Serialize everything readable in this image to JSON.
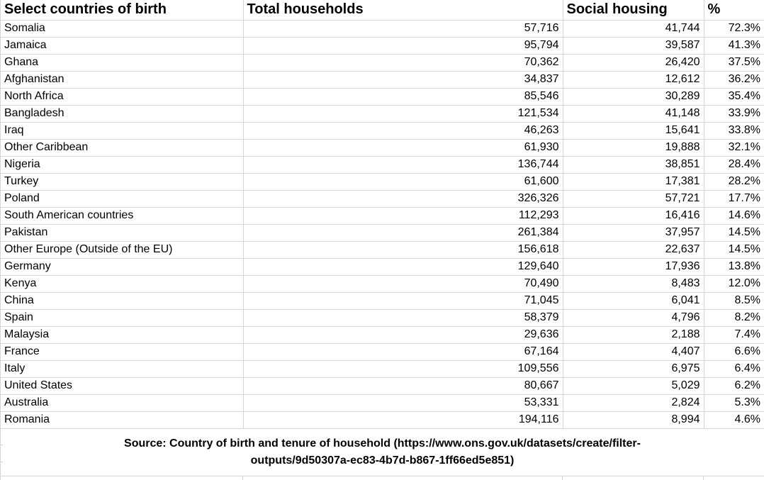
{
  "colors": {
    "gridline": "#d6d6d6",
    "text": "#000000",
    "background": "#ffffff"
  },
  "table": {
    "columns": [
      {
        "label": "Select countries of birth"
      },
      {
        "label": "Total households"
      },
      {
        "label": "Social housing"
      },
      {
        "label": "%"
      }
    ],
    "rows": [
      {
        "country": "Somalia",
        "total_households": "57,716",
        "social_housing": "41,744",
        "percent": "72.3%"
      },
      {
        "country": "Jamaica",
        "total_households": "95,794",
        "social_housing": "39,587",
        "percent": "41.3%"
      },
      {
        "country": "Ghana",
        "total_households": "70,362",
        "social_housing": "26,420",
        "percent": "37.5%"
      },
      {
        "country": "Afghanistan",
        "total_households": "34,837",
        "social_housing": "12,612",
        "percent": "36.2%"
      },
      {
        "country": "North Africa",
        "total_households": "85,546",
        "social_housing": "30,289",
        "percent": "35.4%"
      },
      {
        "country": "Bangladesh",
        "total_households": "121,534",
        "social_housing": "41,148",
        "percent": "33.9%"
      },
      {
        "country": "Iraq",
        "total_households": "46,263",
        "social_housing": "15,641",
        "percent": "33.8%"
      },
      {
        "country": "Other Caribbean",
        "total_households": "61,930",
        "social_housing": "19,888",
        "percent": "32.1%"
      },
      {
        "country": "Nigeria",
        "total_households": "136,744",
        "social_housing": "38,851",
        "percent": "28.4%"
      },
      {
        "country": "Turkey",
        "total_households": "61,600",
        "social_housing": "17,381",
        "percent": "28.2%"
      },
      {
        "country": "Poland",
        "total_households": "326,326",
        "social_housing": "57,721",
        "percent": "17.7%"
      },
      {
        "country": "South American countries",
        "total_households": "112,293",
        "social_housing": "16,416",
        "percent": "14.6%"
      },
      {
        "country": "Pakistan",
        "total_households": "261,384",
        "social_housing": "37,957",
        "percent": "14.5%"
      },
      {
        "country": "Other Europe (Outside of the EU)",
        "total_households": "156,618",
        "social_housing": "22,637",
        "percent": "14.5%"
      },
      {
        "country": "Germany",
        "total_households": "129,640",
        "social_housing": "17,936",
        "percent": "13.8%"
      },
      {
        "country": "Kenya",
        "total_households": "70,490",
        "social_housing": "8,483",
        "percent": "12.0%"
      },
      {
        "country": "China",
        "total_households": "71,045",
        "social_housing": "6,041",
        "percent": "8.5%"
      },
      {
        "country": "Spain",
        "total_households": "58,379",
        "social_housing": "4,796",
        "percent": "8.2%"
      },
      {
        "country": "Malaysia",
        "total_households": "29,636",
        "social_housing": "2,188",
        "percent": "7.4%"
      },
      {
        "country": "France",
        "total_households": "67,164",
        "social_housing": "4,407",
        "percent": "6.6%"
      },
      {
        "country": "Italy",
        "total_households": "109,556",
        "social_housing": "6,975",
        "percent": "6.4%"
      },
      {
        "country": "United States",
        "total_households": "80,667",
        "social_housing": "5,029",
        "percent": "6.2%"
      },
      {
        "country": "Australia",
        "total_households": "53,331",
        "social_housing": "2,824",
        "percent": "5.3%"
      },
      {
        "country": "Romania",
        "total_households": "194,116",
        "social_housing": "8,994",
        "percent": "4.6%"
      }
    ]
  },
  "source": {
    "lines": [
      "Source: Country of birth and tenure of household (https://www.ons.gov.uk/datasets/create/filter-",
      "outputs/9d50307a-ec83-4b7d-b867-1ff66ed5e851)"
    ]
  }
}
